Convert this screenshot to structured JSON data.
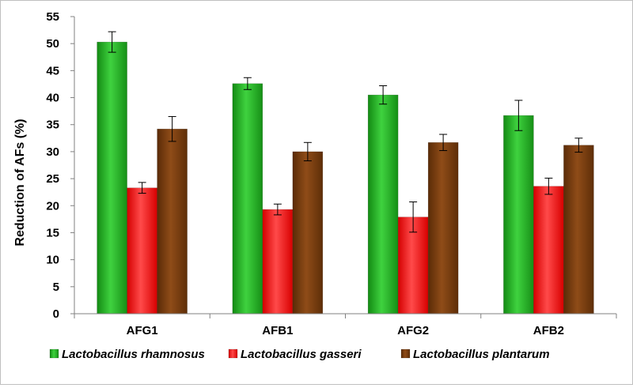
{
  "chart_data": {
    "type": "bar",
    "title": "",
    "xlabel": "",
    "ylabel": "Reduction of AFs (%)",
    "ylim": [
      0,
      55
    ],
    "yticks": [
      0,
      5,
      10,
      15,
      20,
      25,
      30,
      35,
      40,
      45,
      50,
      55
    ],
    "categories": [
      "AFG1",
      "AFB1",
      "AFG2",
      "AFB2"
    ],
    "grid": false,
    "legend_position": "bottom",
    "series": [
      {
        "name": "Lactobacillus rhamnosus",
        "color": "#2eb82e",
        "values": [
          50.3,
          42.6,
          40.5,
          36.7
        ],
        "errors": [
          1.9,
          1.1,
          1.7,
          2.8
        ]
      },
      {
        "name": "Lactobacillus gasseri",
        "color": "#ff2020",
        "values": [
          23.3,
          19.3,
          17.9,
          23.6
        ],
        "errors": [
          1.0,
          1.0,
          2.8,
          1.5
        ]
      },
      {
        "name": "Lactobacillus plantarum",
        "color": "#7a3e0e",
        "values": [
          34.2,
          30.0,
          31.7,
          31.2
        ],
        "errors": [
          2.3,
          1.7,
          1.5,
          1.3
        ]
      }
    ]
  }
}
